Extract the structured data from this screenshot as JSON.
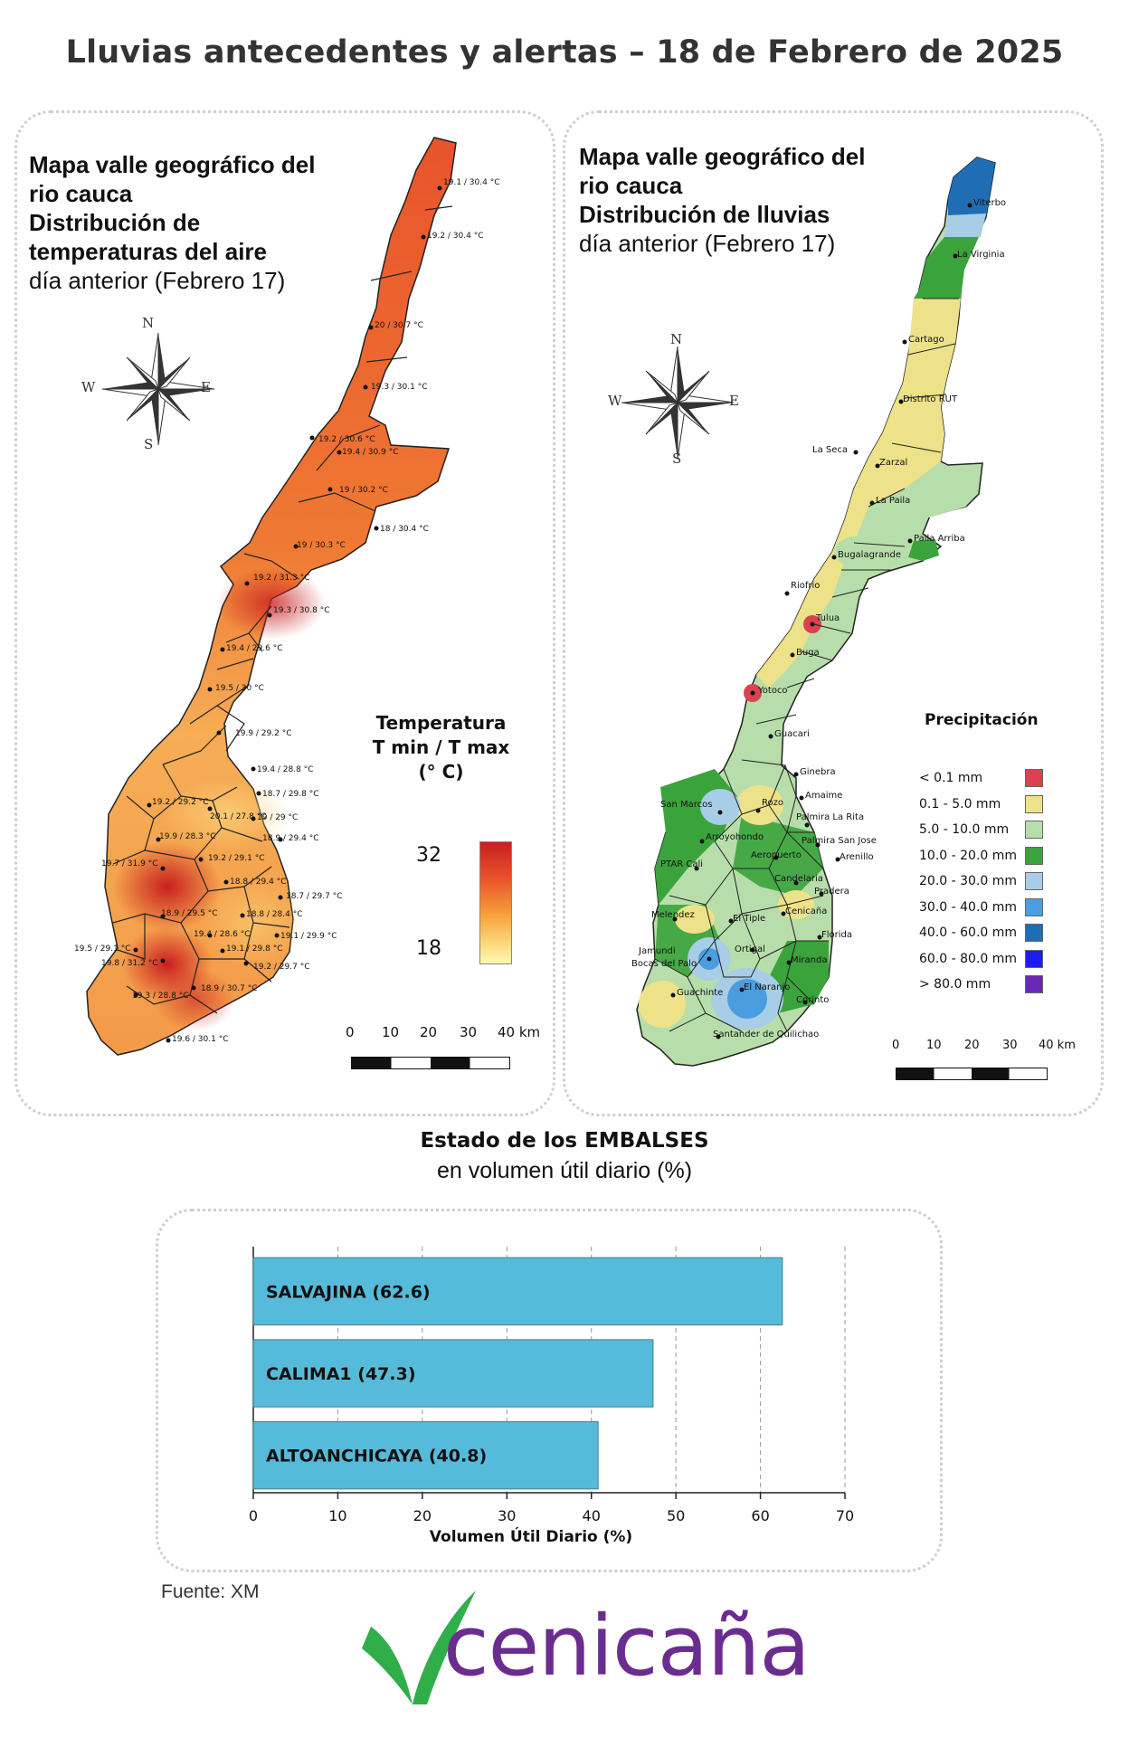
{
  "header": {
    "title": "Lluvias antecedentes y alertas – 18 de Febrero de 2025"
  },
  "compass": {
    "n": "N",
    "s": "S",
    "e": "E",
    "w": "W"
  },
  "temp_map": {
    "title_line1": "Mapa valle geográfico del",
    "title_line2": "rio cauca",
    "title_line3": "Distribución de",
    "title_line4": "temperaturas del aire",
    "title_line5": "día anterior (Febrero 17)",
    "legend_line1": "Temperatura",
    "legend_line2": "T min / T max",
    "legend_line3": "(° C)",
    "legend_max": "32",
    "legend_min": "18",
    "scale": [
      "0",
      "10",
      "20",
      "30",
      "40 km"
    ],
    "colors": {
      "low": "#fff7b2",
      "mid": "#f6a23a",
      "high": "#c81f1f"
    },
    "stations": [
      "19.1 / 30.4 °C",
      "19.2 / 30.4 °C",
      "20 / 30.7 °C",
      "19.3 / 30.1 °C",
      "19.2 / 30.6 °C",
      "19.4 / 30.9 °C",
      "19 / 30.2 °C",
      "18 / 30.4 °C",
      "19 / 30.3 °C",
      "19.2 / 31.3 °C",
      "19.3 / 30.8 °C",
      "19.4 / 29.6 °C",
      "19.5 / 30 °C",
      "19.9 / 29.2 °C",
      "19.4 / 28.8 °C",
      "18.7 / 29.8 °C",
      "19.2 / 29.2 °C",
      "20.1 / 27.8 °C",
      "19 / 29 °C",
      "19.9 / 28.3 °C",
      "18.9 / 29.4 °C",
      "19.2 / 29.1 °C",
      "19.7 / 31.9 °C",
      "18.8 / 29.4 °C",
      "18.7 / 29.7 °C",
      "18.9 / 29.5 °C",
      "18.8 / 28.4 °C",
      "19.4 / 28.6 °C",
      "19.1 / 29.9 °C",
      "19.5 / 29.1 °C",
      "19.8 / 31.2 °C",
      "19.1 / 29.8 °C",
      "19.2 / 29.7 °C",
      "18.9 / 30.7 °C",
      "19.3 / 28.8 °C",
      "19.6 / 30.1 °C"
    ]
  },
  "rain_map": {
    "title_line1": "Mapa valle geográfico del",
    "title_line2": "rio cauca",
    "title_line3": "Distribución de lluvias",
    "title_line4": "día anterior (Febrero 17)",
    "legend_title": "Precipitación",
    "legend": [
      {
        "label": "< 0.1 mm",
        "color": "#d9434f"
      },
      {
        "label": "0.1 - 5.0 mm",
        "color": "#ede289"
      },
      {
        "label": "5.0 - 10.0 mm",
        "color": "#b7deaa"
      },
      {
        "label": "10.0 - 20.0 mm",
        "color": "#3ba33b"
      },
      {
        "label": "20.0 - 30.0 mm",
        "color": "#a8cde6"
      },
      {
        "label": "30.0 - 40.0 mm",
        "color": "#4a9ee0"
      },
      {
        "label": "40.0 - 60.0 mm",
        "color": "#1f6db3"
      },
      {
        "label": "60.0 - 80.0 mm",
        "color": "#1d1df2"
      },
      {
        "label": "> 80.0 mm",
        "color": "#6a27b8"
      }
    ],
    "scale": [
      "0",
      "10",
      "20",
      "30",
      "40 km"
    ],
    "cities": [
      "Viterbo",
      "La Virginia",
      "Cartago",
      "Distrito RUT",
      "La Seca",
      "Zarzal",
      "La Paila",
      "Paila Arriba",
      "Bugalagrande",
      "Riofrio",
      "Tulua",
      "Buga",
      "Yotoco",
      "Guacari",
      "Ginebra",
      "Amaime",
      "San Marcos",
      "Rozo",
      "Palmira La Rita",
      "Arroyohondo",
      "Palmira San Jose",
      "Aeropuerto",
      "Arenillo",
      "PTAR Cali",
      "Candelaria",
      "Pradera",
      "Melendez",
      "El Tiple",
      "Cenicaña",
      "Florida",
      "Jamundi",
      "Bocas del Palo",
      "Ortigal",
      "Miranda",
      "Guachinte",
      "El Naranjo",
      "Corinto",
      "Santander de Quilichao"
    ]
  },
  "embalses": {
    "title": "Estado de los EMBALSES",
    "subtitle": "en volumen útil diario (%)"
  },
  "chart_data": {
    "type": "bar",
    "orientation": "horizontal",
    "categories": [
      "SALVAJINA",
      "CALIMA1",
      "ALTOANCHICAYA"
    ],
    "values": [
      62.6,
      47.3,
      40.8
    ],
    "bar_labels": [
      "SALVAJINA (62.6)",
      "CALIMA1 (47.3)",
      "ALTOANCHICAYA (40.8)"
    ],
    "xlabel": "Volumen Útil Diario (%)",
    "xlim": [
      0,
      70
    ],
    "xticks": [
      "0",
      "10",
      "20",
      "30",
      "40",
      "50",
      "60",
      "70"
    ],
    "grid": "vertical dashed",
    "bar_color": "#56bbda"
  },
  "footer": {
    "source": "Fuente: XM",
    "logo_text": "cenicaña",
    "logo_color": "#6b2c8f",
    "leaf_color": "#2fae4a"
  }
}
